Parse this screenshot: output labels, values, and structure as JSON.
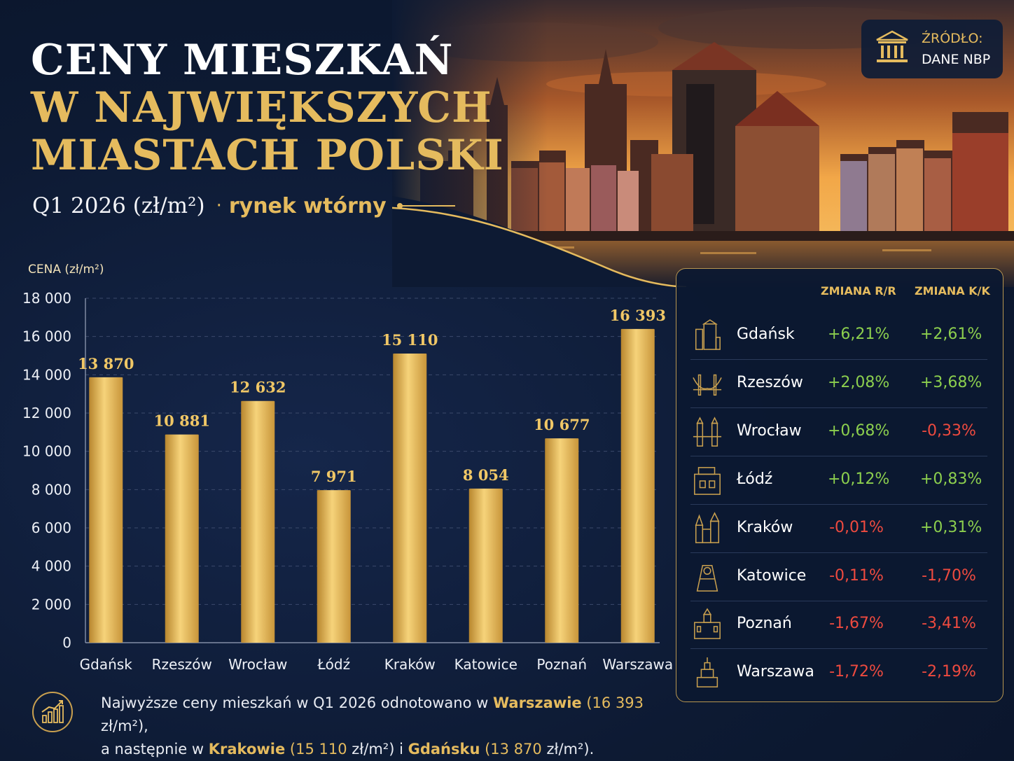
{
  "title": {
    "line1": "CENY MIESZKAŃ",
    "line2": "W NAJWIĘKSZYCH",
    "line3": "MIASTACH POLSKI"
  },
  "subtitle": {
    "period": "Q1 2026 (zł/m²)",
    "separator": "·",
    "market": "rynek wtórny"
  },
  "source": {
    "label": "ŹRÓDŁO:",
    "value": "DANE NBP",
    "icon": "bank-icon"
  },
  "chart_data": {
    "type": "bar",
    "ylabel": "CENA (zł/m²)",
    "ylim": [
      0,
      18000
    ],
    "yticks": [
      0,
      2000,
      4000,
      6000,
      8000,
      10000,
      12000,
      14000,
      16000,
      18000
    ],
    "ytick_labels": [
      "0",
      "2 000",
      "4 000",
      "6 000",
      "8 000",
      "10 000",
      "12 000",
      "14 000",
      "16 000",
      "18 000"
    ],
    "grid": true,
    "categories": [
      "Gdańsk",
      "Rzeszów",
      "Wrocław",
      "Łódź",
      "Kraków",
      "Katowice",
      "Poznań",
      "Warszawa"
    ],
    "values": [
      13870,
      10881,
      12632,
      7971,
      15110,
      8054,
      10677,
      16393
    ],
    "value_labels": [
      "13 870",
      "10 881",
      "12 632",
      "7 971",
      "15 110",
      "8 054",
      "10 677",
      "16 393"
    ],
    "bar_color": "#e6bd5c"
  },
  "table": {
    "header_yoy": "ZMIANA R/R",
    "header_qoq": "ZMIANA K/K",
    "positive_color": "#8ccf4e",
    "negative_color": "#ee4a3f",
    "rows": [
      {
        "city": "Gdańsk",
        "yoy": "+6,21%",
        "qoq": "+2,61%",
        "icon": "crane-gate-icon"
      },
      {
        "city": "Rzeszów",
        "yoy": "+2,08%",
        "qoq": "+3,68%",
        "icon": "bridge-icon"
      },
      {
        "city": "Wrocław",
        "yoy": "+0,68%",
        "qoq": "-0,33%",
        "icon": "bridge-tower-icon"
      },
      {
        "city": "Łódź",
        "yoy": "+0,12%",
        "qoq": "+0,83%",
        "icon": "factory-icon"
      },
      {
        "city": "Kraków",
        "yoy": "-0,01%",
        "qoq": "+0,31%",
        "icon": "church-icon"
      },
      {
        "city": "Katowice",
        "yoy": "-0,11%",
        "qoq": "-1,70%",
        "icon": "mine-shaft-icon"
      },
      {
        "city": "Poznań",
        "yoy": "-1,67%",
        "qoq": "-3,41%",
        "icon": "town-hall-icon"
      },
      {
        "city": "Warszawa",
        "yoy": "-1,72%",
        "qoq": "-2,19%",
        "icon": "palace-of-culture-icon"
      }
    ]
  },
  "footer": {
    "icon": "rising-chart-icon",
    "t1": "Najwyższe ceny mieszkań w Q1 2026 odnotowano w ",
    "city1": "Warszawie",
    "v1": "(16 393",
    "t2": " zł/m²),",
    "t3": "a następnie w ",
    "city2": "Krakowie",
    "v2": "(15 110",
    "t4": " zł/m²) i ",
    "city3": "Gdańsku",
    "v3": "(13 870",
    "t5": " zł/m²)."
  },
  "colors": {
    "background": "#0d1a33",
    "gold": "#e5bb5e"
  }
}
